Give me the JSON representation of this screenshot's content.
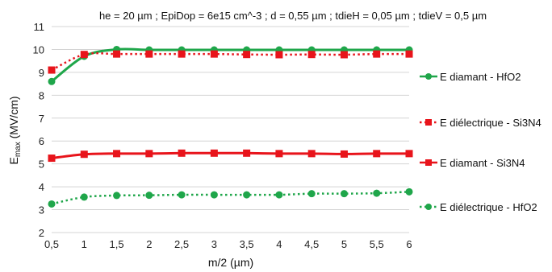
{
  "chart_data": {
    "type": "line",
    "title": "he = 20 µm ; EpiDop = 6e15 cm^-3 ; d = 0,55 µm ; tdieH = 0,05 µm ; tdieV = 0,5 µm",
    "xlabel": "m/2 (µm)",
    "ylabel_main": "E",
    "ylabel_sub": "max",
    "ylabel_unit": " (MV/cm)",
    "x": [
      0.5,
      1,
      1.5,
      2,
      2.5,
      3,
      3.5,
      4,
      4.5,
      5,
      5.5,
      6
    ],
    "x_tick_labels": [
      "0,5",
      "1",
      "1,5",
      "2",
      "2,5",
      "3",
      "3,5",
      "4",
      "4,5",
      "5",
      "5,5",
      "6"
    ],
    "y_ticks": [
      2,
      3,
      4,
      5,
      6,
      7,
      8,
      9,
      10,
      11
    ],
    "y_tick_labels": [
      "2",
      "3",
      "4",
      "5",
      "6",
      "7",
      "8",
      "9",
      "10",
      "11"
    ],
    "xlim": [
      0.5,
      6
    ],
    "ylim": [
      2,
      11
    ],
    "grid": "horizontal",
    "legend_position": "right",
    "series": [
      {
        "name": "E diamant - HfO2",
        "color": "#1fa64a",
        "marker": "circle",
        "line": "solid",
        "values": [
          8.6,
          9.7,
          10.0,
          9.98,
          9.98,
          9.98,
          9.98,
          9.98,
          9.98,
          9.98,
          9.98,
          9.98
        ]
      },
      {
        "name": "E diélectrique - Si3N4",
        "color": "#e8141b",
        "marker": "square",
        "line": "dotted",
        "values": [
          9.1,
          9.78,
          9.8,
          9.8,
          9.8,
          9.8,
          9.78,
          9.77,
          9.78,
          9.77,
          9.8,
          9.8
        ]
      },
      {
        "name": "E diamant - Si3N4",
        "color": "#e8141b",
        "marker": "square",
        "line": "solid",
        "values": [
          5.25,
          5.42,
          5.45,
          5.45,
          5.47,
          5.47,
          5.47,
          5.45,
          5.45,
          5.43,
          5.45,
          5.45
        ]
      },
      {
        "name": "E diélectrique - HfO2",
        "color": "#1fa64a",
        "marker": "circle",
        "line": "dotted",
        "values": [
          3.25,
          3.55,
          3.62,
          3.63,
          3.65,
          3.65,
          3.65,
          3.65,
          3.7,
          3.7,
          3.72,
          3.78
        ]
      }
    ]
  }
}
